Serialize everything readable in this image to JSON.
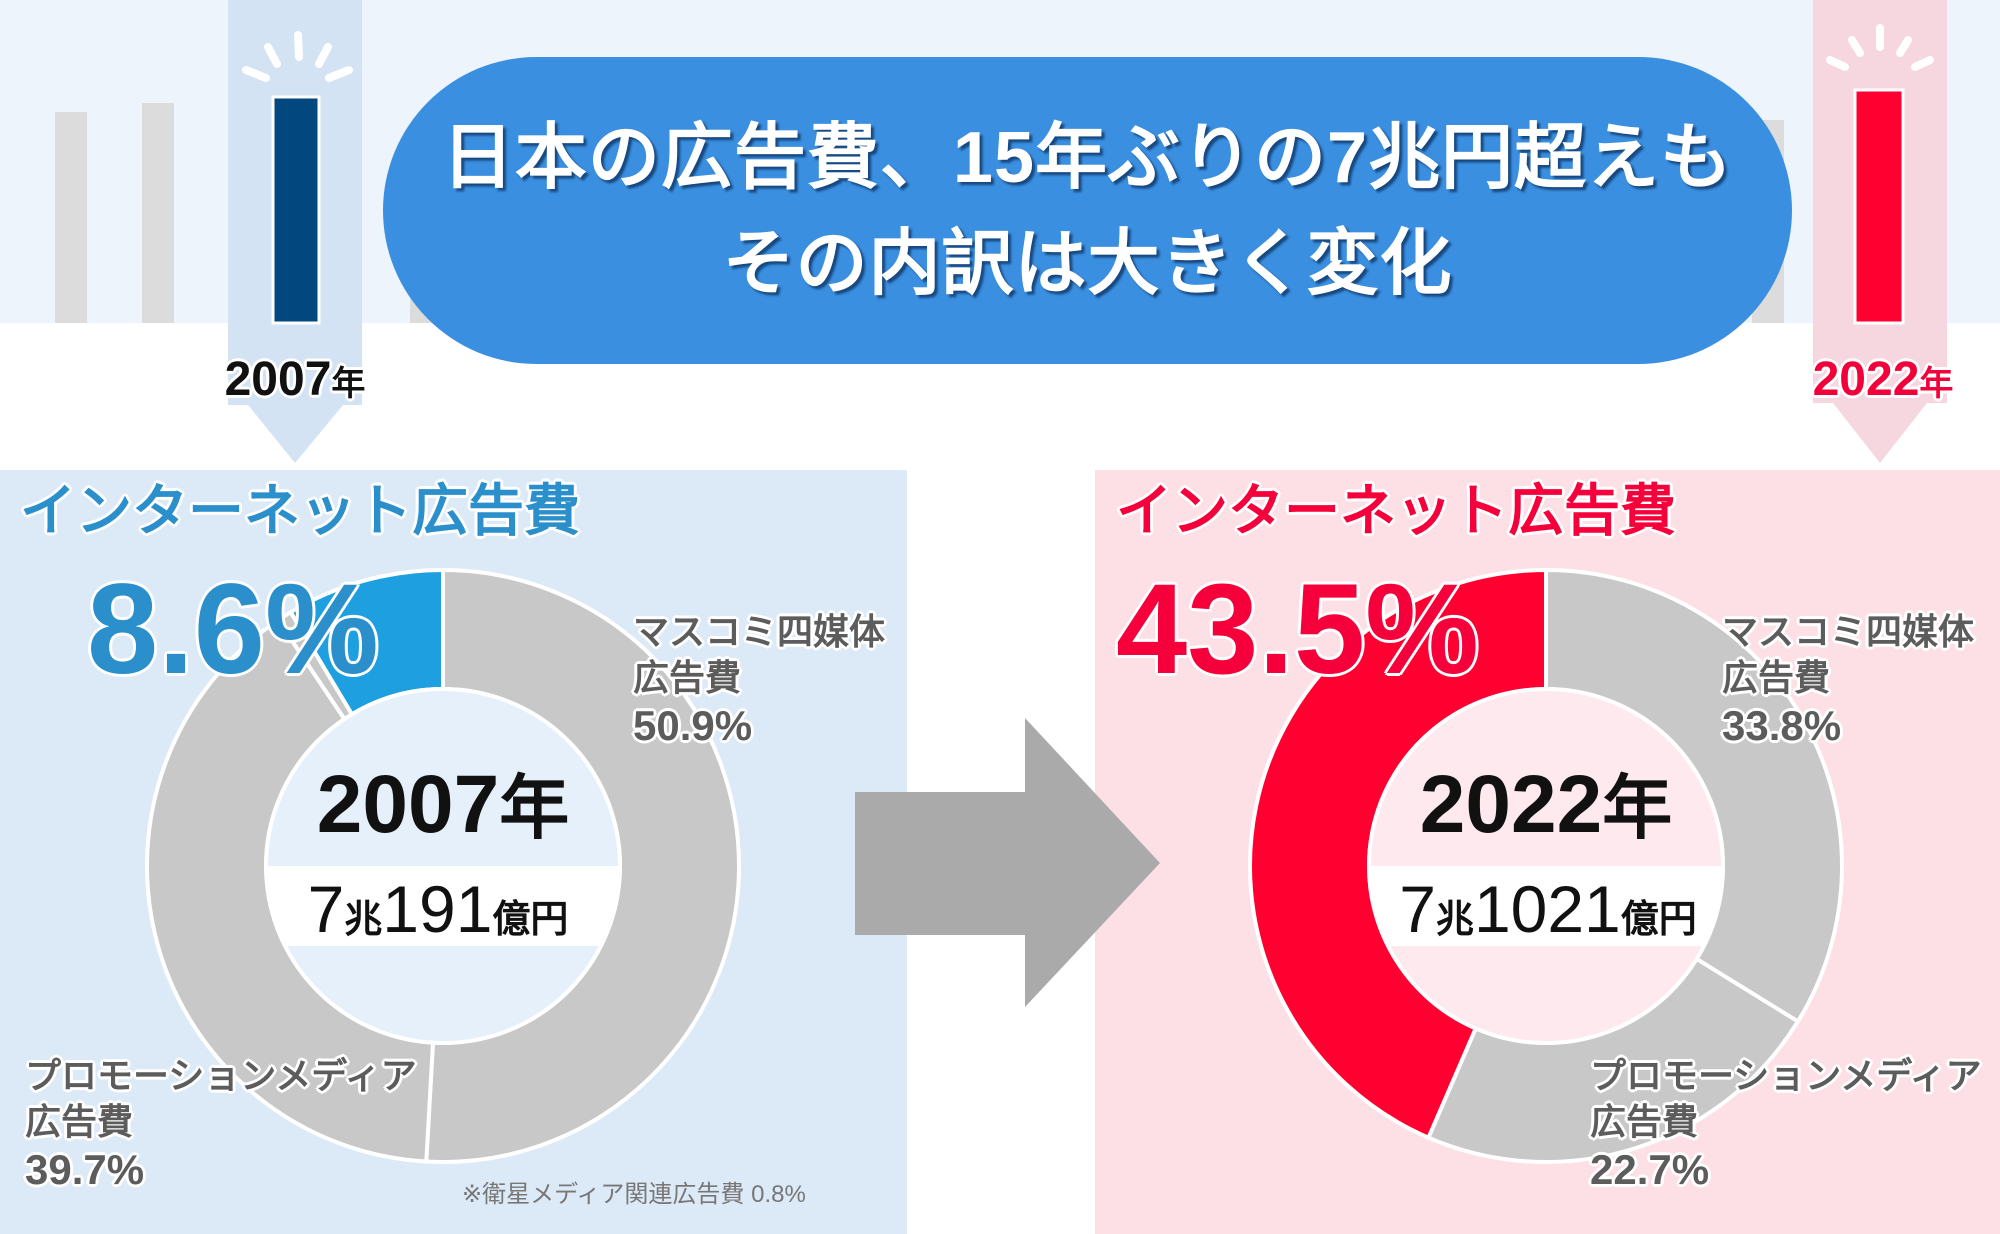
{
  "header": {
    "title_line1": "日本の広告費、15年ぶりの7兆円超えも",
    "title_line2": "その内訳は大きく変化"
  },
  "timeline": {
    "start": {
      "year": "2007",
      "unit": "年"
    },
    "end": {
      "year": "2022",
      "unit": "年"
    }
  },
  "panels": {
    "left": {
      "heading": "インターネット広告費",
      "highlight_value": "8.6%",
      "center": {
        "year": "2007",
        "year_unit": "年",
        "amount_trillion": "7",
        "trillion_unit": "兆",
        "amount_oku": "191",
        "oku_unit": "億円"
      },
      "label_mass": {
        "line1": "マスコミ四媒体",
        "line2": "広告費",
        "value": "50.9%"
      },
      "label_promo": {
        "line1": "プロモーションメディア",
        "line2": "広告費",
        "value": "39.7%"
      },
      "footnote": "※衛星メディア関連広告費 0.8%"
    },
    "right": {
      "heading": "インターネット広告費",
      "highlight_value": "43.5%",
      "center": {
        "year": "2022",
        "year_unit": "年",
        "amount_trillion": "7",
        "trillion_unit": "兆",
        "amount_oku": "1021",
        "oku_unit": "億円"
      },
      "label_mass": {
        "line1": "マスコミ四媒体",
        "line2": "広告費",
        "value": "33.8%"
      },
      "label_promo": {
        "line1": "プロモーションメディア",
        "line2": "広告費",
        "value": "22.7%"
      }
    }
  },
  "colors": {
    "banner": "#3a8fe0",
    "internet_2007": "#1e9fe0",
    "internet_2022": "#ff0030",
    "other_segments": "#c8c8c8",
    "bar_2007": "#03477f",
    "bar_2022": "#ff0030",
    "panel_2007_bg": "#dce9f6",
    "panel_2022_bg": "#fde0e6",
    "arrow": "#aaaaaa"
  },
  "chart_data": [
    {
      "type": "pie",
      "variant": "donut",
      "title": "2007年",
      "subtitle": "7兆191億円",
      "start_angle": "12 o'clock, clockwise",
      "categories": [
        "マスコミ四媒体広告費",
        "プロモーションメディア広告費",
        "衛星メディア関連広告費",
        "インターネット広告費"
      ],
      "slugs": [
        "mass-media",
        "promotion-media",
        "satellite-media",
        "internet"
      ],
      "values": [
        50.9,
        39.7,
        0.8,
        8.6
      ],
      "unit": "%",
      "colors": [
        "#c8c8c8",
        "#c8c8c8",
        "#c8c8c8",
        "#1e9fe0"
      ],
      "highlight": "インターネット広告費",
      "legend": "direct labels"
    },
    {
      "type": "pie",
      "variant": "donut",
      "title": "2022年",
      "subtitle": "7兆1021億円",
      "start_angle": "12 o'clock, clockwise",
      "categories": [
        "マスコミ四媒体広告費",
        "プロモーションメディア広告費",
        "インターネット広告費"
      ],
      "slugs": [
        "mass-media",
        "promotion-media",
        "internet"
      ],
      "values": [
        33.8,
        22.7,
        43.5
      ],
      "unit": "%",
      "colors": [
        "#c8c8c8",
        "#c8c8c8",
        "#ff0030"
      ],
      "highlight": "インターネット広告費",
      "legend": "direct labels"
    }
  ]
}
